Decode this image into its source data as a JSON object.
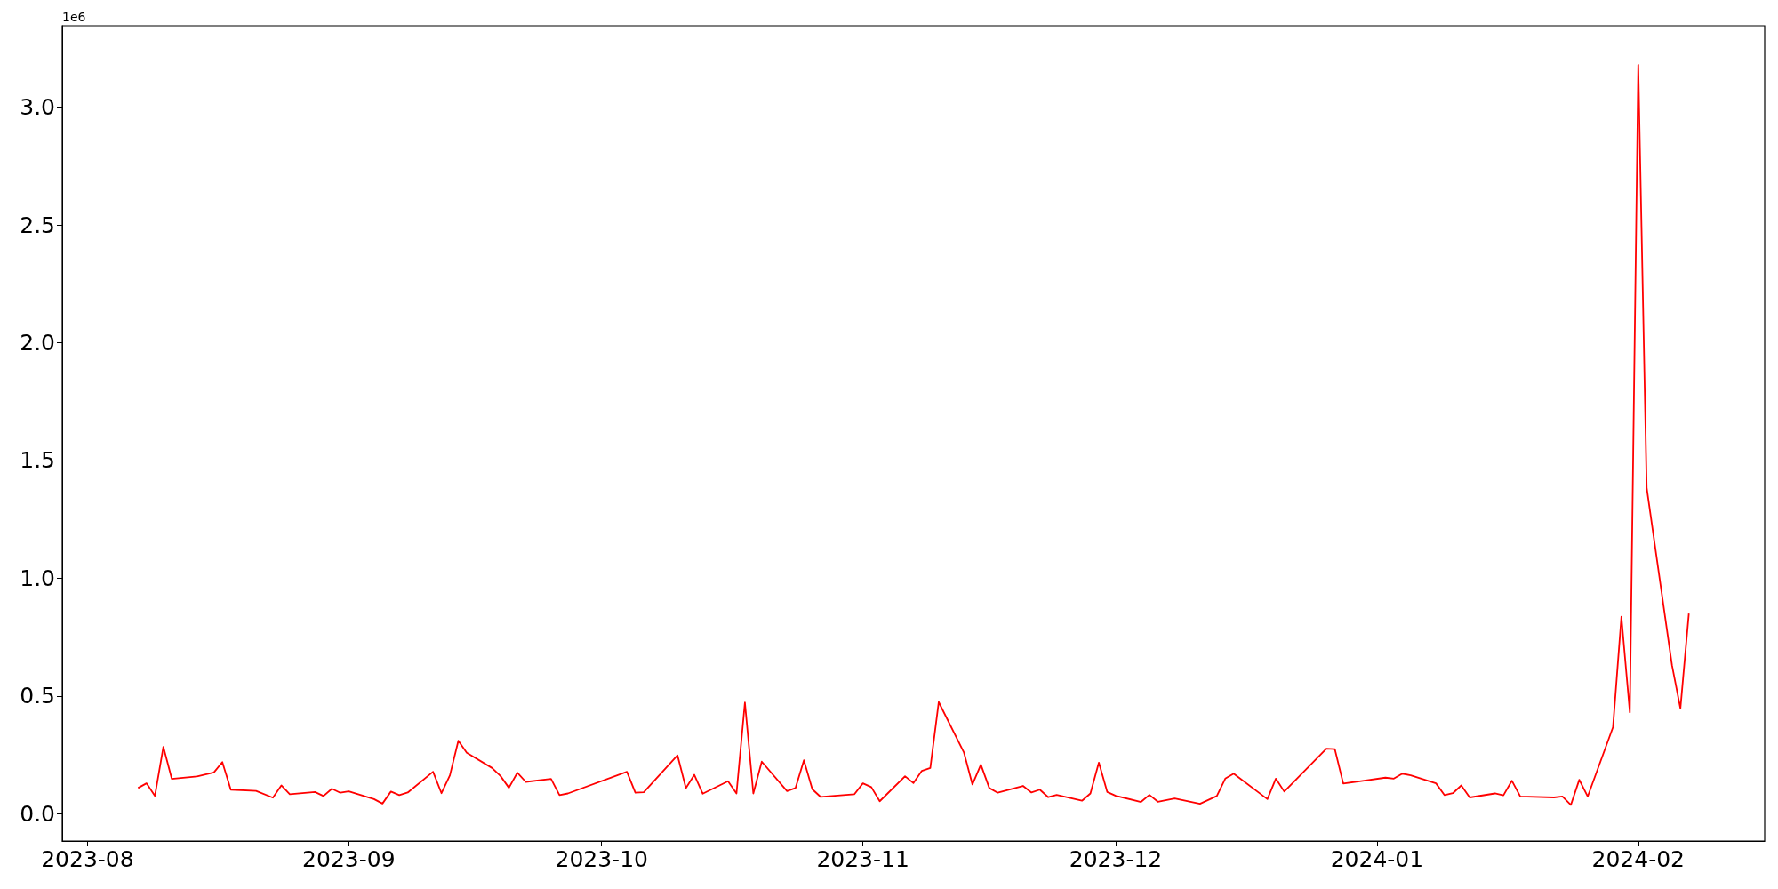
{
  "chart_data": {
    "type": "line",
    "annotations": [
      "1e6"
    ],
    "color": "#ff0000",
    "marker": "none",
    "line_style": "solid",
    "x": [
      "2023-08-07",
      "2023-08-08",
      "2023-08-09",
      "2023-08-10",
      "2023-08-11",
      "2023-08-14",
      "2023-08-16",
      "2023-08-17",
      "2023-08-18",
      "2023-08-21",
      "2023-08-23",
      "2023-08-24",
      "2023-08-25",
      "2023-08-28",
      "2023-08-29",
      "2023-08-30",
      "2023-08-31",
      "2023-09-01",
      "2023-09-04",
      "2023-09-05",
      "2023-09-06",
      "2023-09-07",
      "2023-09-08",
      "2023-09-11",
      "2023-09-12",
      "2023-09-13",
      "2023-09-14",
      "2023-09-15",
      "2023-09-18",
      "2023-09-19",
      "2023-09-20",
      "2023-09-21",
      "2023-09-22",
      "2023-09-25",
      "2023-09-26",
      "2023-09-27",
      "2023-10-04",
      "2023-10-05",
      "2023-10-06",
      "2023-10-10",
      "2023-10-11",
      "2023-10-12",
      "2023-10-13",
      "2023-10-16",
      "2023-10-17",
      "2023-10-18",
      "2023-10-19",
      "2023-10-20",
      "2023-10-23",
      "2023-10-24",
      "2023-10-25",
      "2023-10-26",
      "2023-10-27",
      "2023-10-31",
      "2023-11-01",
      "2023-11-02",
      "2023-11-03",
      "2023-11-06",
      "2023-11-07",
      "2023-11-08",
      "2023-11-09",
      "2023-11-10",
      "2023-11-13",
      "2023-11-14",
      "2023-11-15",
      "2023-11-16",
      "2023-11-17",
      "2023-11-20",
      "2023-11-21",
      "2023-11-22",
      "2023-11-23",
      "2023-11-24",
      "2023-11-27",
      "2023-11-28",
      "2023-11-29",
      "2023-11-30",
      "2023-12-01",
      "2023-12-04",
      "2023-12-05",
      "2023-12-06",
      "2023-12-08",
      "2023-12-11",
      "2023-12-13",
      "2023-12-14",
      "2023-12-15",
      "2023-12-19",
      "2023-12-20",
      "2023-12-21",
      "2023-12-26",
      "2023-12-27",
      "2023-12-28",
      "2024-01-02",
      "2024-01-03",
      "2024-01-04",
      "2024-01-05",
      "2024-01-08",
      "2024-01-09",
      "2024-01-10",
      "2024-01-11",
      "2024-01-12",
      "2024-01-15",
      "2024-01-16",
      "2024-01-17",
      "2024-01-18",
      "2024-01-22",
      "2024-01-23",
      "2024-01-24",
      "2024-01-25",
      "2024-01-26",
      "2024-01-29",
      "2024-01-30",
      "2024-01-31",
      "2024-02-01",
      "2024-02-02",
      "2024-02-05",
      "2024-02-06",
      "2024-02-07"
    ],
    "values": [
      0.109,
      0.129,
      0.076,
      0.284,
      0.148,
      0.158,
      0.175,
      0.219,
      0.102,
      0.097,
      0.068,
      0.12,
      0.083,
      0.092,
      0.075,
      0.106,
      0.089,
      0.095,
      0.062,
      0.043,
      0.094,
      0.079,
      0.09,
      0.178,
      0.087,
      0.163,
      0.31,
      0.259,
      0.194,
      0.16,
      0.11,
      0.174,
      0.135,
      0.148,
      0.079,
      0.086,
      0.178,
      0.089,
      0.091,
      0.248,
      0.109,
      0.165,
      0.085,
      0.138,
      0.086,
      0.472,
      0.086,
      0.221,
      0.096,
      0.109,
      0.227,
      0.104,
      0.071,
      0.083,
      0.129,
      0.113,
      0.053,
      0.159,
      0.13,
      0.182,
      0.194,
      0.474,
      0.259,
      0.124,
      0.208,
      0.109,
      0.089,
      0.118,
      0.09,
      0.102,
      0.07,
      0.08,
      0.055,
      0.086,
      0.217,
      0.092,
      0.076,
      0.05,
      0.08,
      0.051,
      0.065,
      0.042,
      0.075,
      0.149,
      0.17,
      0.062,
      0.149,
      0.094,
      0.276,
      0.274,
      0.128,
      0.153,
      0.149,
      0.17,
      0.163,
      0.129,
      0.079,
      0.087,
      0.12,
      0.069,
      0.086,
      0.078,
      0.14,
      0.073,
      0.069,
      0.073,
      0.037,
      0.144,
      0.073,
      0.367,
      0.837,
      0.43,
      3.18,
      1.384,
      0.631,
      0.447,
      0.85
    ],
    "xlim": [
      "2023-07-29",
      "2024-02-16"
    ],
    "xticks": [
      {
        "value": "2023-08-01",
        "label": "2023-08"
      },
      {
        "value": "2023-09-01",
        "label": "2023-09"
      },
      {
        "value": "2023-10-01",
        "label": "2023-10"
      },
      {
        "value": "2023-11-01",
        "label": "2023-11"
      },
      {
        "value": "2023-12-01",
        "label": "2023-12"
      },
      {
        "value": "2024-01-01",
        "label": "2024-01"
      },
      {
        "value": "2024-02-01",
        "label": "2024-02"
      }
    ],
    "ylim": [
      -0.116,
      3.346
    ],
    "yticks": [
      {
        "value": 0,
        "label": "0.0"
      },
      {
        "value": 0.5,
        "label": "0.5"
      },
      {
        "value": 1,
        "label": "1.0"
      },
      {
        "value": 1.5,
        "label": "1.5"
      },
      {
        "value": 2,
        "label": "2.0"
      },
      {
        "value": 2.5,
        "label": "2.5"
      },
      {
        "value": 3,
        "label": "3.0"
      }
    ]
  }
}
